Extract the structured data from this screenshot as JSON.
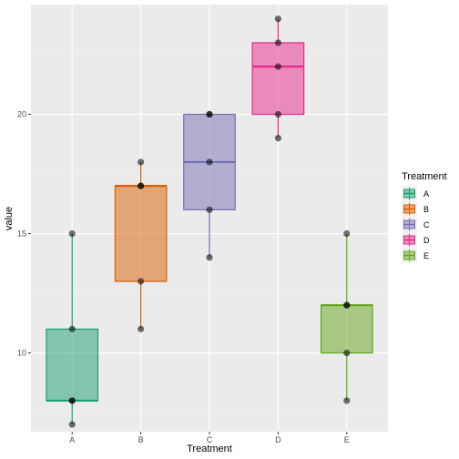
{
  "chart_data": {
    "type": "boxplot",
    "xlabel": "Treatment",
    "ylabel": "value",
    "categories": [
      "A",
      "B",
      "C",
      "D",
      "E"
    ],
    "ylim": [
      6.7,
      24.6
    ],
    "yticks": [
      10,
      15,
      20
    ],
    "grid": true,
    "legend": {
      "title": "Treatment",
      "placement": "right",
      "entries": [
        "A",
        "B",
        "C",
        "D",
        "E"
      ]
    },
    "boxes": [
      {
        "name": "A",
        "min": 7,
        "q1": 8,
        "median": 8,
        "q3": 11,
        "max": 15,
        "color": "#1b9e77"
      },
      {
        "name": "B",
        "min": 11,
        "q1": 13,
        "median": 17,
        "q3": 17,
        "max": 18,
        "color": "#d95f02"
      },
      {
        "name": "C",
        "min": 14,
        "q1": 16,
        "median": 18,
        "q3": 20,
        "max": 20,
        "color": "#7570b3"
      },
      {
        "name": "D",
        "min": 19,
        "q1": 20,
        "median": 22,
        "q3": 23,
        "max": 24,
        "color": "#e7298a"
      },
      {
        "name": "E",
        "min": 8,
        "q1": 10,
        "median": 12,
        "q3": 12,
        "max": 15,
        "color": "#66a61e"
      }
    ],
    "points": [
      {
        "category": "A",
        "values": [
          7,
          8,
          8,
          11,
          15
        ]
      },
      {
        "category": "B",
        "values": [
          11,
          13,
          17,
          17,
          18
        ]
      },
      {
        "category": "C",
        "values": [
          14,
          16,
          18,
          20,
          20
        ]
      },
      {
        "category": "D",
        "values": [
          19,
          20,
          22,
          23,
          24
        ]
      },
      {
        "category": "E",
        "values": [
          8,
          10,
          12,
          12,
          15
        ]
      }
    ]
  }
}
